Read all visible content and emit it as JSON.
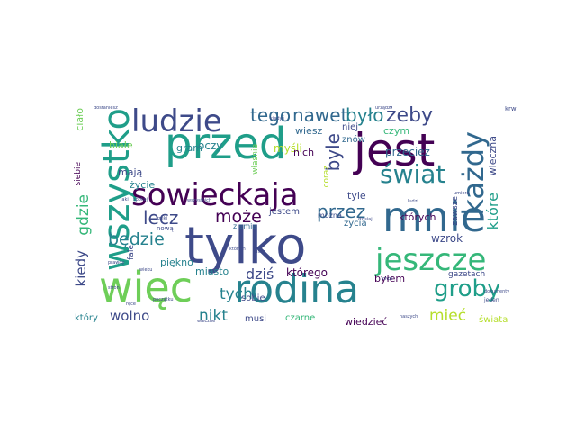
{
  "palette": {
    "dark_purple": "#440154",
    "indigo": "#3e4a89",
    "blue": "#31688e",
    "teal": "#26828e",
    "green_teal": "#1f9e89",
    "green": "#35b779",
    "lime": "#6ece58",
    "yellow_green": "#b5de2b",
    "yellow": "#fde725"
  },
  "words": [
    {
      "text": "tylko",
      "color": "#3e4a89"
    },
    {
      "text": "jest",
      "color": "#440154"
    },
    {
      "text": "przed",
      "color": "#1f9e89"
    },
    {
      "text": "mnie",
      "color": "#31688e"
    },
    {
      "text": "więc",
      "color": "#6ece58"
    },
    {
      "text": "rodina",
      "color": "#26828e"
    },
    {
      "text": "wszystko",
      "color": "#1f9e89"
    },
    {
      "text": "sowieckaja",
      "color": "#440154"
    },
    {
      "text": "jeszcze",
      "color": "#35b779"
    },
    {
      "text": "każdy",
      "color": "#31688e"
    },
    {
      "text": "ludzie",
      "color": "#3e4a89"
    },
    {
      "text": "świat",
      "color": "#26828e"
    },
    {
      "text": "groby",
      "color": "#1f9e89"
    },
    {
      "text": "tego",
      "color": "#31688e"
    },
    {
      "text": "nawet",
      "color": "#31688e"
    },
    {
      "text": "było",
      "color": "#26828e"
    },
    {
      "text": "żeby",
      "color": "#3e4a89"
    },
    {
      "text": "przez",
      "color": "#31688e"
    },
    {
      "text": "byle",
      "color": "#3e4a89"
    },
    {
      "text": "lecz",
      "color": "#3e4a89"
    },
    {
      "text": "może",
      "color": "#440154"
    },
    {
      "text": "będzie",
      "color": "#26828e"
    },
    {
      "text": "gdzie",
      "color": "#35b779"
    },
    {
      "text": "kiedy",
      "color": "#3e4a89"
    },
    {
      "text": "dziś",
      "color": "#3e4a89"
    },
    {
      "text": "tych",
      "color": "#26828e"
    },
    {
      "text": "nikt",
      "color": "#26828e"
    },
    {
      "text": "wolno",
      "color": "#3e4a89"
    },
    {
      "text": "mieć",
      "color": "#b5de2b"
    },
    {
      "text": "które",
      "color": "#1f9e89"
    },
    {
      "text": "ciało",
      "color": "#6ece58"
    },
    {
      "text": "białe",
      "color": "#6ece58"
    },
    {
      "text": "mają",
      "color": "#3e4a89"
    },
    {
      "text": "życie",
      "color": "#26828e"
    },
    {
      "text": "gram",
      "color": "#26828e"
    },
    {
      "text": "oczy",
      "color": "#26828e"
    },
    {
      "text": "myśli",
      "color": "#b5de2b"
    },
    {
      "text": "wiesz",
      "color": "#31688e"
    },
    {
      "text": "nich",
      "color": "#440154"
    },
    {
      "text": "znów",
      "color": "#31688e"
    },
    {
      "text": "niej",
      "color": "#3e4a89"
    },
    {
      "text": "czym",
      "color": "#35b779"
    },
    {
      "text": "wieczna",
      "color": "#3e4a89"
    },
    {
      "text": "przecież",
      "color": "#31688e"
    },
    {
      "text": "tyle",
      "color": "#3e4a89"
    },
    {
      "text": "życia",
      "color": "#31688e"
    },
    {
      "text": "jestem",
      "color": "#3e4a89"
    },
    {
      "text": "których",
      "color": "#440154"
    },
    {
      "text": "wzrok",
      "color": "#3e4a89"
    },
    {
      "text": "którego",
      "color": "#440154"
    },
    {
      "text": "byłem",
      "color": "#440154"
    },
    {
      "text": "gazetach",
      "color": "#3e4a89"
    },
    {
      "text": "piękno",
      "color": "#26828e"
    },
    {
      "text": "miasto",
      "color": "#26828e"
    },
    {
      "text": "sobie",
      "color": "#3e4a89"
    },
    {
      "text": "musi",
      "color": "#3e4a89"
    },
    {
      "text": "czarne",
      "color": "#35b779"
    },
    {
      "text": "wiedzieć",
      "color": "#440154"
    },
    {
      "text": "świata",
      "color": "#b5de2b"
    },
    {
      "text": "siebie",
      "color": "#440154"
    },
    {
      "text": "który",
      "color": "#26828e"
    },
    {
      "text": "fale",
      "color": "#3e4a89"
    },
    {
      "text": "nową",
      "color": "#3e4a89"
    },
    {
      "text": "ziemia",
      "color": "#31688e"
    },
    {
      "text": "można",
      "color": "#3e4a89"
    },
    {
      "text": "coraz",
      "color": "#b5de2b"
    },
    {
      "text": "zawsze",
      "color": "#3e4a89"
    },
    {
      "text": "właśnie",
      "color": "#6ece58"
    },
    {
      "text": "krwi",
      "color": "#3e4a89"
    },
    {
      "text": "jeden",
      "color": "#3e4a89"
    },
    {
      "text": "naszych",
      "color": "#3e4a89"
    },
    {
      "text": "wieczne",
      "color": "#3e4a89"
    },
    {
      "text": "dzisiaj",
      "color": "#3e4a89"
    },
    {
      "text": "ludzi",
      "color": "#3e4a89"
    },
    {
      "text": "kiedyś",
      "color": "#3e4a89"
    },
    {
      "text": "którym",
      "color": "#3e4a89"
    },
    {
      "text": "pisze",
      "color": "#3e4a89"
    },
    {
      "text": "spokoj",
      "color": "#3e4a89"
    },
    {
      "text": "wszystkich",
      "color": "#3e4a89"
    },
    {
      "text": "rzeki",
      "color": "#3e4a89"
    },
    {
      "text": "wieku",
      "color": "#3e4a89"
    },
    {
      "text": "stron",
      "color": "#3e4a89"
    },
    {
      "text": "początku",
      "color": "#3e4a89"
    },
    {
      "text": "dostaniesz",
      "color": "#3e4a89"
    },
    {
      "text": "jaki",
      "color": "#3e4a89"
    },
    {
      "text": "cnos",
      "color": "#3e4a89"
    },
    {
      "text": "urządz",
      "color": "#3e4a89"
    },
    {
      "text": "dokumenty",
      "color": "#3e4a89"
    },
    {
      "text": "umiera",
      "color": "#3e4a89"
    },
    {
      "text": "prawdy",
      "color": "#3e4a89"
    },
    {
      "text": "ręce",
      "color": "#3e4a89"
    }
  ]
}
